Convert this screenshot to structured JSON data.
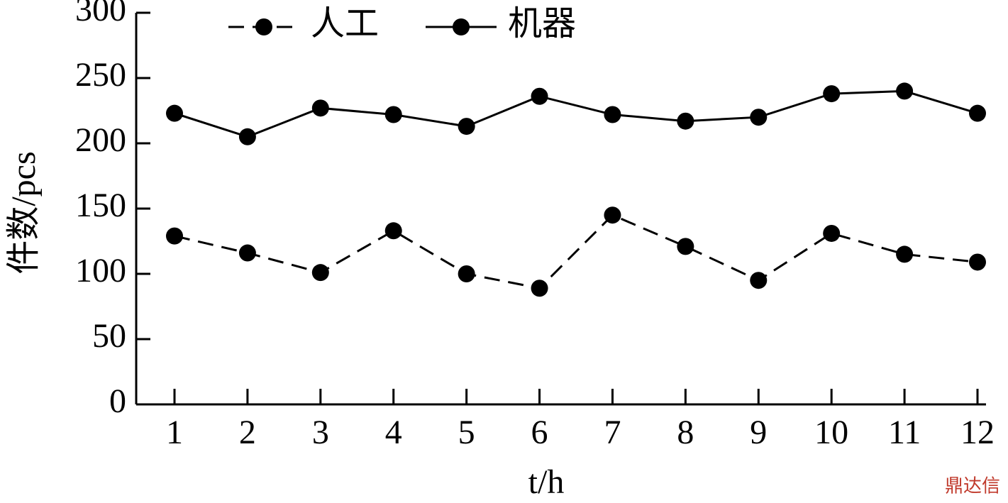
{
  "chart_data": {
    "type": "line",
    "x_label": "t/h",
    "y_label": "件数/pcs",
    "categories": [
      "1",
      "2",
      "3",
      "4",
      "5",
      "6",
      "7",
      "8",
      "9",
      "10",
      "11",
      "12"
    ],
    "series": [
      {
        "name": "人工",
        "color": "#000000",
        "dash": true,
        "values": [
          129,
          116,
          101,
          133,
          100,
          89,
          145,
          121,
          95,
          131,
          115,
          109
        ]
      },
      {
        "name": "机器",
        "color": "#000000",
        "dash": false,
        "values": [
          223,
          205,
          227,
          222,
          213,
          236,
          222,
          217,
          220,
          238,
          240,
          223
        ]
      }
    ],
    "ylim": [
      0,
      300
    ],
    "yticks": [
      0,
      50,
      100,
      150,
      200,
      250,
      300
    ],
    "watermark": "鼎达信"
  }
}
